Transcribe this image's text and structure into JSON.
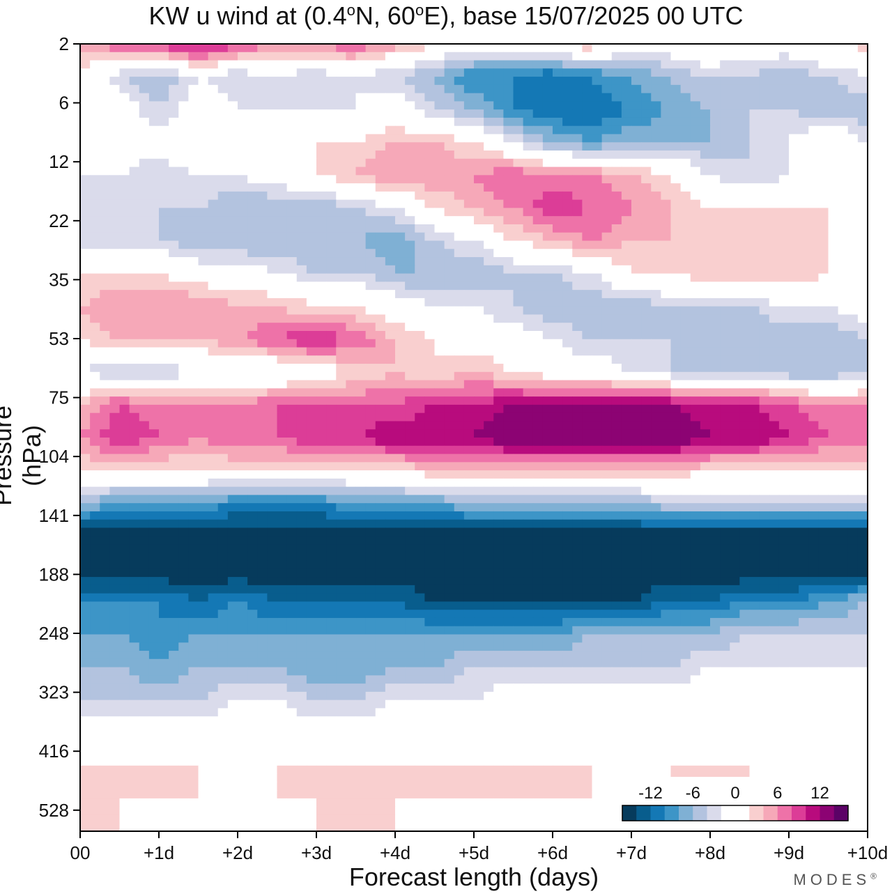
{
  "chart_data": {
    "type": "heatmap",
    "title": "KW u wind at (0.4°N, 60°E),  base 15/07/2025  00 UTC",
    "title_parts": {
      "prefix": "KW u wind at (0.4",
      "deg1": "o",
      "mid": "N, 60",
      "deg2": "o",
      "suffix": "E),  base 15/07/2025  00 UTC"
    },
    "xlabel": "Forecast length (days)",
    "ylabel": "Pressure (hPa)",
    "x_ticks": [
      "00",
      "+1d",
      "+2d",
      "+3d",
      "+4d",
      "+5d",
      "+6d",
      "+7d",
      "+8d",
      "+9d",
      "+10d"
    ],
    "y_ticks": [
      "2",
      "6",
      "12",
      "22",
      "35",
      "53",
      "75",
      "104",
      "141",
      "188",
      "248",
      "323",
      "416",
      "528"
    ],
    "xlim": [
      0,
      10
    ],
    "colorbar": {
      "tick_labels": [
        "-12",
        "-6",
        "0",
        "6",
        "12"
      ],
      "colors": [
        "#063b5c",
        "#085d8d",
        "#1478b5",
        "#3d95c7",
        "#7fb0d4",
        "#b3c3df",
        "#dadbeb",
        "#ffffff",
        "#ffffff",
        "#f9cfcf",
        "#f6a8b8",
        "#ee72a8",
        "#dc3d97",
        "#b80b7d",
        "#8c0373",
        "#5b0266"
      ],
      "bounds": [
        -16,
        -14,
        -12,
        -10,
        -8,
        -6,
        -4,
        -2,
        0,
        2,
        4,
        6,
        8,
        10,
        12,
        14,
        16
      ]
    },
    "y_levels": [
      2,
      6,
      12,
      22,
      35,
      53,
      75,
      104,
      141,
      188,
      248,
      323,
      416,
      528
    ],
    "x_days": [
      0,
      0.5,
      1,
      1.5,
      2,
      2.5,
      3,
      3.5,
      4,
      4.5,
      5,
      5.5,
      6,
      6.5,
      7,
      7.5,
      8,
      8.5,
      9,
      9.5,
      10
    ],
    "u_wind": [
      [
        4,
        8,
        9,
        12,
        9,
        6,
        6,
        8,
        5,
        2,
        0,
        0,
        2,
        4,
        0,
        0,
        2,
        0,
        0,
        2,
        3
      ],
      [
        2,
        -4,
        -6,
        -2,
        -4,
        -2,
        -4,
        -2,
        -4,
        -6,
        -10,
        -10,
        -12,
        -10,
        -8,
        -6,
        -4,
        -4,
        -6,
        -4,
        -2
      ],
      [
        2,
        0,
        -4,
        0,
        -2,
        -2,
        -2,
        -2,
        0,
        -4,
        -6,
        -10,
        -12,
        -12,
        -10,
        -8,
        -6,
        -4,
        -4,
        -6,
        -6
      ],
      [
        0,
        0,
        0,
        2,
        2,
        2,
        2,
        2,
        4,
        4,
        2,
        -2,
        -6,
        -8,
        -6,
        -6,
        -6,
        -4,
        -2,
        2,
        -2
      ],
      [
        -2,
        -2,
        -4,
        -2,
        -2,
        0,
        2,
        4,
        6,
        6,
        6,
        8,
        6,
        6,
        4,
        2,
        -2,
        -4,
        -2,
        -2,
        0
      ],
      [
        -4,
        -4,
        -4,
        -4,
        -6,
        -6,
        -6,
        -4,
        -2,
        2,
        4,
        6,
        10,
        8,
        6,
        4,
        2,
        2,
        2,
        2,
        0
      ],
      [
        -4,
        -4,
        -4,
        -6,
        -6,
        -6,
        -6,
        -6,
        -8,
        -4,
        -2,
        2,
        4,
        6,
        4,
        4,
        4,
        2,
        2,
        2,
        -2
      ],
      [
        2,
        2,
        2,
        0,
        0,
        -2,
        -4,
        -4,
        -6,
        -6,
        -6,
        -4,
        -4,
        -2,
        2,
        2,
        4,
        4,
        4,
        2,
        2
      ],
      [
        4,
        6,
        6,
        6,
        4,
        4,
        2,
        2,
        0,
        -2,
        -2,
        -4,
        -6,
        -6,
        -6,
        -4,
        -4,
        -4,
        -2,
        -2,
        0
      ],
      [
        2,
        4,
        4,
        4,
        6,
        8,
        10,
        8,
        4,
        2,
        0,
        0,
        -2,
        -4,
        -4,
        -4,
        -6,
        -6,
        -6,
        -6,
        -4
      ],
      [
        -2,
        -4,
        -4,
        -2,
        -2,
        -2,
        0,
        2,
        4,
        2,
        4,
        2,
        0,
        0,
        -2,
        -4,
        -4,
        -4,
        -6,
        -6,
        -4
      ],
      [
        4,
        8,
        6,
        6,
        6,
        8,
        8,
        8,
        8,
        10,
        10,
        12,
        12,
        12,
        12,
        12,
        10,
        10,
        8,
        6,
        6
      ],
      [
        6,
        10,
        8,
        6,
        8,
        8,
        10,
        10,
        12,
        12,
        12,
        14,
        14,
        14,
        14,
        14,
        12,
        12,
        10,
        8,
        8
      ],
      [
        2,
        2,
        2,
        2,
        2,
        2,
        2,
        2,
        2,
        4,
        4,
        4,
        4,
        4,
        4,
        4,
        2,
        2,
        2,
        2,
        2
      ],
      [
        -6,
        -8,
        -8,
        -8,
        -10,
        -10,
        -10,
        -8,
        -8,
        -8,
        -6,
        -6,
        -6,
        -6,
        -6,
        -4,
        -4,
        -4,
        -4,
        -4,
        -4
      ],
      [
        -16,
        -16,
        -16,
        -16,
        -16,
        -16,
        -16,
        -16,
        -16,
        -16,
        -16,
        -16,
        -16,
        -16,
        -16,
        -16,
        -16,
        -16,
        -16,
        -16,
        -16
      ],
      [
        -16,
        -16,
        -16,
        -16,
        -16,
        -16,
        -16,
        -16,
        -16,
        -16,
        -16,
        -16,
        -16,
        -16,
        -16,
        -16,
        -16,
        -16,
        -16,
        -16,
        -16
      ],
      [
        -10,
        -10,
        -10,
        -12,
        -10,
        -12,
        -12,
        -12,
        -12,
        -14,
        -14,
        -14,
        -14,
        -14,
        -14,
        -12,
        -12,
        -10,
        -10,
        -8,
        -6
      ],
      [
        -8,
        -8,
        -10,
        -8,
        -8,
        -8,
        -8,
        -8,
        -8,
        -8,
        -8,
        -8,
        -8,
        -6,
        -6,
        -6,
        -6,
        -4,
        -4,
        -4,
        -4
      ],
      [
        -6,
        -6,
        -8,
        -6,
        -6,
        -6,
        -8,
        -8,
        -6,
        -6,
        -4,
        -4,
        -4,
        -4,
        -4,
        -4,
        -2,
        -2,
        -2,
        -2,
        -2
      ],
      [
        -4,
        -4,
        -4,
        -4,
        -2,
        -2,
        -4,
        -4,
        -2,
        -2,
        -2,
        0,
        0,
        0,
        0,
        0,
        0,
        0,
        0,
        0,
        0
      ],
      [
        0,
        0,
        0,
        0,
        0,
        0,
        0,
        0,
        0,
        0,
        0,
        0,
        0,
        0,
        0,
        0,
        0,
        0,
        0,
        0,
        0
      ],
      [
        2,
        2,
        2,
        2,
        0,
        2,
        2,
        2,
        2,
        2,
        2,
        2,
        2,
        2,
        2,
        2,
        2,
        2,
        2,
        0,
        0
      ],
      [
        2,
        2,
        2,
        2,
        2,
        2,
        2,
        2,
        2,
        2,
        2,
        2,
        2,
        2,
        0,
        2,
        2,
        2,
        0,
        0,
        0
      ],
      [
        2,
        2,
        0,
        0,
        0,
        0,
        2,
        2,
        2,
        0,
        0,
        0,
        0,
        0,
        0,
        0,
        0,
        0,
        0,
        0,
        0
      ]
    ],
    "grid": false,
    "legend": "bottom-right colorbar",
    "brand": "MODES",
    "brand_mark": "®"
  }
}
